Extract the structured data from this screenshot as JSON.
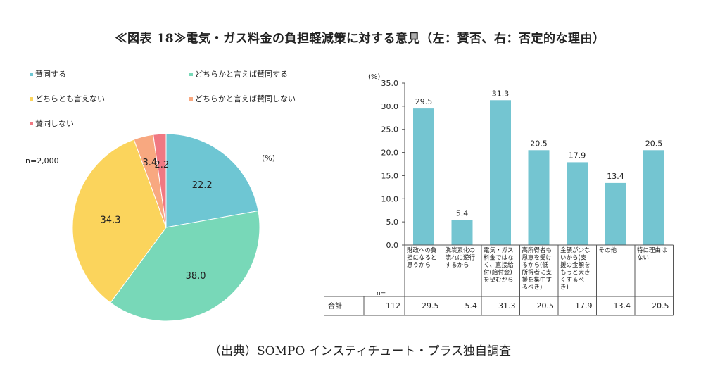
{
  "title": "≪図表 18≫電気・ガス料金の負担軽減策に対する意見（左：賛否、右：否定的な理由）",
  "source": "（出典）SOMPO インスティチュート・プラス独自調査",
  "pie_n": "n=2,000",
  "pie_unit": "(%)",
  "bar_unit": "(%)",
  "colors": {
    "pie": [
      "#6ec6d3",
      "#78d8b8",
      "#fbd45c",
      "#f8a880",
      "#f07882"
    ],
    "bar": "#74c5d1"
  },
  "chart_data": [
    {
      "type": "pie",
      "categories": [
        "賛同する",
        "どちらかと言えば賛同する",
        "どちらとも言えない",
        "どちらかと言えば賛同しない",
        "賛同しない"
      ],
      "values": [
        22.2,
        38.0,
        34.3,
        3.4,
        2.2
      ],
      "value_labels": [
        "22.2",
        "38.0",
        "34.3",
        "3.4",
        "2.2"
      ],
      "legend": "top"
    },
    {
      "type": "bar",
      "categories": [
        [
          "財政への負",
          "担になると",
          "思うから"
        ],
        [
          "脱炭素化の",
          "流れに逆行",
          "するから"
        ],
        [
          "電気・ガス",
          "料金ではな",
          "く、直接給",
          "付(給付金)",
          "を望むから"
        ],
        [
          "高所得者も",
          "恩恵を受け",
          "るから(低",
          "所得者に支",
          "援を集中す",
          "るべき)"
        ],
        [
          "金額が少な",
          "いから(支",
          "援の金額を",
          "もっと大き",
          "くするべ",
          "き)"
        ],
        [
          "その他"
        ],
        [
          "特に理由は",
          "ない"
        ]
      ],
      "values": [
        29.5,
        5.4,
        31.3,
        20.5,
        17.9,
        13.4,
        20.5
      ],
      "value_labels": [
        "29.5",
        "5.4",
        "31.3",
        "20.5",
        "17.9",
        "13.4",
        "20.5"
      ],
      "ylim": [
        0,
        35
      ],
      "yticks": [
        "0.0",
        "5.0",
        "10.0",
        "15.0",
        "20.0",
        "25.0",
        "30.0",
        "35.0"
      ],
      "ytick_values": [
        0,
        5,
        10,
        15,
        20,
        25,
        30,
        35
      ],
      "table": {
        "n_label": "n=",
        "row_label": "合計",
        "n_value": "112",
        "values": [
          "29.5",
          "5.4",
          "31.3",
          "20.5",
          "17.9",
          "13.4",
          "20.5"
        ]
      }
    }
  ]
}
